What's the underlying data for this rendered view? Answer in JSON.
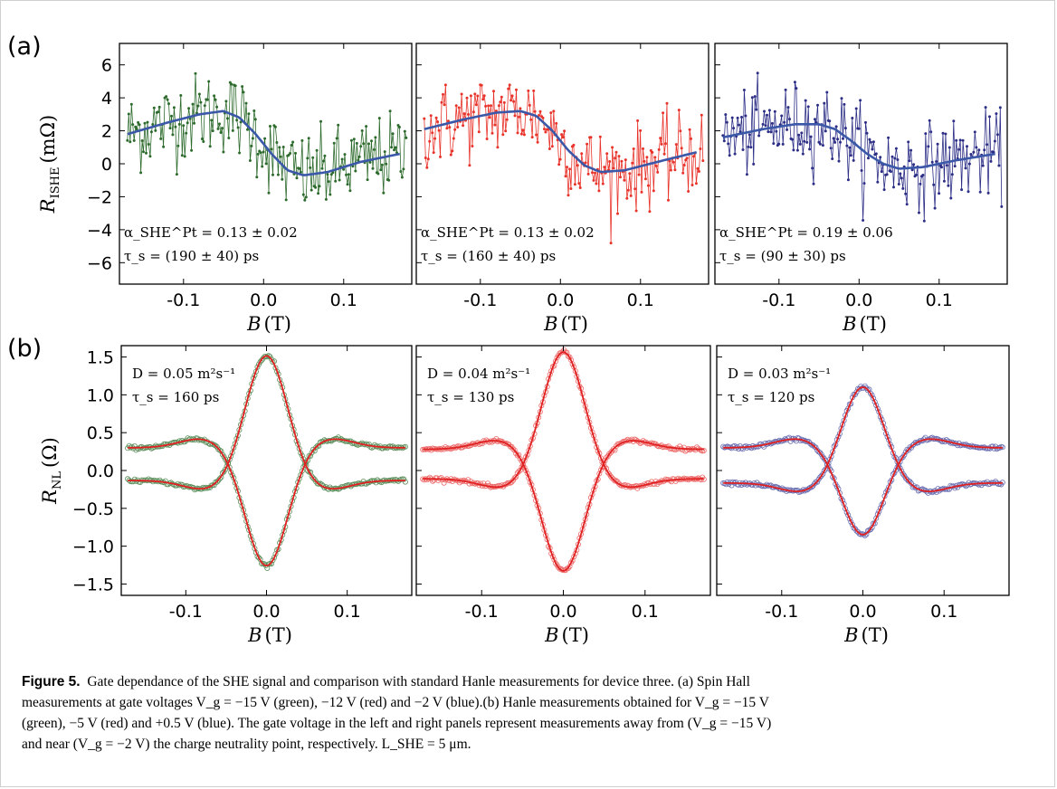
{
  "panel_labels": {
    "a": "(a)",
    "b": "(b)"
  },
  "caption": {
    "label": "Figure 5.",
    "line1": "Gate dependance of the SHE signal and comparison with standard Hanle measurements for device three. (a) Spin Hall",
    "line2": "measurements at gate voltages V_g = −15 V (green), −12 V (red) and −2 V (blue).(b) Hanle measurements obtained for V_g = −15 V",
    "line3": "(green), −5 V (red) and +0.5 V (blue). The gate voltage in the left and right panels represent measurements away from (V_g = −15 V)",
    "line4": "and near (V_g = −2 V) the charge neutrality point, respectively. L_SHE = 5 μm."
  },
  "chart_data": [
    {
      "type": "scatter",
      "panel": "(a) left",
      "xlabel": "B (T)",
      "ylabel": "R_ISHE (mΩ)",
      "xlim": [
        -0.18,
        0.185
      ],
      "ylim": [
        -7.3,
        7.3
      ],
      "xticks": [
        "-0.1",
        "0.0",
        "0.1"
      ],
      "yticks": [
        "6",
        "4",
        "2",
        "0",
        "−2",
        "−4",
        "−6"
      ],
      "data_color": "#2d6b2d",
      "fit_color": "#3b58a8",
      "annotation": [
        "α_SHE^Pt = 0.13 ± 0.02",
        "τ_s = (190 ± 40) ps"
      ],
      "fit": {
        "x": [
          -0.17,
          -0.12,
          -0.08,
          -0.05,
          -0.03,
          -0.01,
          0.01,
          0.03,
          0.05,
          0.08,
          0.12,
          0.17
        ],
        "y": [
          1.8,
          2.5,
          3.0,
          3.2,
          2.8,
          1.8,
          0.6,
          -0.4,
          -0.7,
          -0.5,
          0.1,
          0.6
        ]
      }
    },
    {
      "type": "scatter",
      "panel": "(a) middle",
      "xlabel": "B (T)",
      "xlim": [
        -0.18,
        0.185
      ],
      "ylim": [
        -7.3,
        7.3
      ],
      "xticks": [
        "-0.1",
        "0.0",
        "0.1"
      ],
      "data_color": "#e8332a",
      "fit_color": "#3b58a8",
      "annotation": [
        "α_SHE^Pt = 0.13 ± 0.02",
        "τ_s = (160 ± 40) ps"
      ],
      "fit": {
        "x": [
          -0.17,
          -0.12,
          -0.08,
          -0.05,
          -0.03,
          -0.01,
          0.01,
          0.03,
          0.05,
          0.08,
          0.12,
          0.17
        ],
        "y": [
          2.1,
          2.7,
          3.1,
          3.2,
          2.9,
          2.0,
          0.8,
          -0.1,
          -0.5,
          -0.4,
          0.1,
          0.7
        ]
      }
    },
    {
      "type": "scatter",
      "panel": "(a) right",
      "xlabel": "B (T)",
      "xlim": [
        -0.18,
        0.185
      ],
      "ylim": [
        -7.3,
        7.3
      ],
      "xticks": [
        "-0.1",
        "0.0",
        "0.1"
      ],
      "data_color": "#2c2e86",
      "fit_color": "#3b58a8",
      "annotation": [
        "α_SHE^Pt = 0.19 ± 0.06",
        "τ_s = (90 ± 30) ps"
      ],
      "fit": {
        "x": [
          -0.17,
          -0.12,
          -0.08,
          -0.05,
          -0.03,
          -0.01,
          0.01,
          0.03,
          0.05,
          0.08,
          0.12,
          0.17
        ],
        "y": [
          1.6,
          2.1,
          2.4,
          2.4,
          2.1,
          1.4,
          0.6,
          0.0,
          -0.3,
          -0.2,
          0.2,
          0.6
        ]
      }
    },
    {
      "type": "scatter",
      "panel": "(b) left",
      "xlabel": "B (T)",
      "ylabel": "R_NL (Ω)",
      "xlim": [
        -0.18,
        0.18
      ],
      "ylim": [
        -1.65,
        1.65
      ],
      "xticks": [
        "-0.1",
        "0.0",
        "0.1"
      ],
      "yticks": [
        "1.5",
        "1.0",
        "0.5",
        "0.0",
        "−0.5",
        "−1.0",
        "−1.5"
      ],
      "data_color": "#5d8f5d",
      "fit_color": "#e02020",
      "annotation": [
        "D = 0.05 m²s⁻¹",
        "τ_s = 160 ps"
      ],
      "hanle": {
        "amplitude": 1.53,
        "offset_low": -0.12,
        "tail_high": 0.3
      }
    },
    {
      "type": "scatter",
      "panel": "(b) middle",
      "xlabel": "B (T)",
      "xlim": [
        -0.18,
        0.18
      ],
      "ylim": [
        -1.65,
        1.65
      ],
      "xticks": [
        "-0.1",
        "0.0",
        "0.1"
      ],
      "data_color": "#ec6b6b",
      "fit_color": "#e02020",
      "annotation": [
        "D = 0.04 m²s⁻¹",
        "τ_s = 130 ps"
      ],
      "hanle": {
        "amplitude": 1.58,
        "offset_low": -0.1,
        "tail_high": 0.28
      }
    },
    {
      "type": "scatter",
      "panel": "(b) right",
      "xlabel": "B (T)",
      "xlim": [
        -0.18,
        0.18
      ],
      "ylim": [
        -1.65,
        1.65
      ],
      "xticks": [
        "-0.1",
        "0.0",
        "0.1"
      ],
      "data_color": "#6a6eb0",
      "fit_color": "#e02020",
      "annotation": [
        "D = 0.03 m²s⁻¹",
        "τ_s = 120 ps"
      ],
      "hanle": {
        "amplitude": 1.12,
        "offset_low": -0.15,
        "tail_high": 0.3
      }
    }
  ]
}
